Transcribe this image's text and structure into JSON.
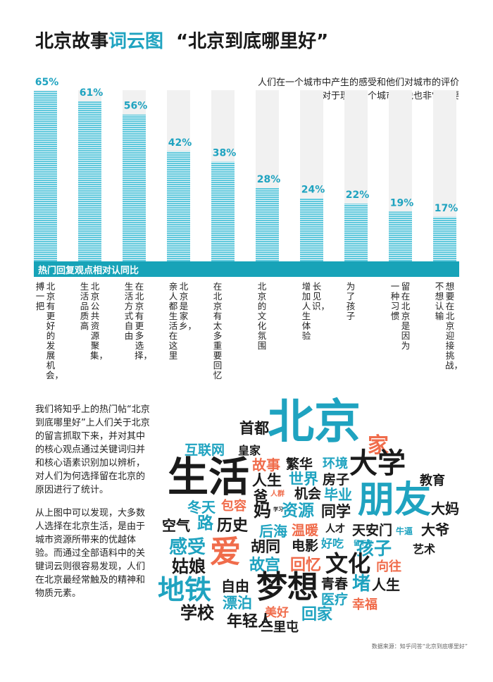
{
  "title": {
    "part1": "北京故事",
    "part2": "词云图",
    "quote": "“北京到底哪里好”"
  },
  "intro": {
    "line1": "人们在一个城市中产生的感受和他们对城市的评价",
    "line2": "对于理解一个城市来说也非常重要"
  },
  "band_label": "热门回复观点相对认同比",
  "colors": {
    "accent": "#1fa3c0",
    "bar": "#5fc8dc",
    "band": "#17a3b8",
    "orange": "#f06c4b",
    "dark": "#1a1a1a"
  },
  "chart_data": {
    "type": "bar",
    "ylim": [
      0,
      70
    ],
    "categories": [
      [
        "北京有更好的发展机会，",
        "搏一把"
      ],
      [
        "北京公共资源聚集，",
        "生活品质高"
      ],
      [
        "在北京有更多选择，",
        "生活方式自由"
      ],
      [
        "北京是家乡，",
        "亲人都生活在这里"
      ],
      [
        "在北京有太多重要回忆"
      ],
      [
        "北京的文化氛围"
      ],
      [
        "长见识，",
        "增加人生体验"
      ],
      [
        "为了孩子"
      ],
      [
        "留在北京是因为",
        "一种习惯"
      ],
      [
        "想要在北京迎接挑战，",
        "不想认输"
      ]
    ],
    "values": [
      65,
      61,
      56,
      42,
      38,
      28,
      24,
      22,
      19,
      17
    ],
    "value_labels": [
      "65%",
      "61%",
      "56%",
      "42%",
      "38%",
      "28%",
      "24%",
      "22%",
      "19%",
      "17%"
    ]
  },
  "body": {
    "p1": "我们将知乎上的热门帖“北京到底哪里好”上人们关于北京的留言抓取下来，并对其中的核心观点通过关键词归并和核心语素识别加以辨析，对人们为何选择留在北京的原因进行了统计。",
    "p2": "从上图中可以发现，大多数人选择在北京生活，是由于城市资源所带来的优越体验。而通过全部语料中的关键词云则很容易发现，人们在北京最经常触及的精神和物质元素。"
  },
  "wordcloud": [
    {
      "text": "北京",
      "color": "accent"
    },
    {
      "text": "首都",
      "color": "dark"
    },
    {
      "text": "家",
      "color": "orange"
    },
    {
      "text": "互联网",
      "color": "accent"
    },
    {
      "text": "皇家",
      "color": "dark"
    },
    {
      "text": "生活",
      "color": "dark"
    },
    {
      "text": "故事",
      "color": "orange"
    },
    {
      "text": "繁华",
      "color": "dark"
    },
    {
      "text": "环境",
      "color": "accent"
    },
    {
      "text": "大学",
      "color": "dark"
    },
    {
      "text": "人生",
      "color": "dark"
    },
    {
      "text": "世界",
      "color": "accent"
    },
    {
      "text": "房子",
      "color": "dark"
    },
    {
      "text": "教育",
      "color": "dark"
    },
    {
      "text": "爸",
      "color": "dark"
    },
    {
      "text": "人群",
      "color": "orange"
    },
    {
      "text": "机会",
      "color": "dark"
    },
    {
      "text": "毕业",
      "color": "accent"
    },
    {
      "text": "朋友",
      "color": "accent"
    },
    {
      "text": "冬天",
      "color": "accent"
    },
    {
      "text": "包容",
      "color": "orange"
    },
    {
      "text": "妈",
      "color": "dark"
    },
    {
      "text": "学习",
      "color": "dark"
    },
    {
      "text": "资源",
      "color": "accent"
    },
    {
      "text": "同学",
      "color": "dark"
    },
    {
      "text": "大妈",
      "color": "dark"
    },
    {
      "text": "空气",
      "color": "dark"
    },
    {
      "text": "路",
      "color": "accent"
    },
    {
      "text": "历史",
      "color": "dark"
    },
    {
      "text": "后海",
      "color": "accent"
    },
    {
      "text": "温暖",
      "color": "orange"
    },
    {
      "text": "人才",
      "color": "dark"
    },
    {
      "text": "天安门",
      "color": "dark"
    },
    {
      "text": "牛逼",
      "color": "accent"
    },
    {
      "text": "大爷",
      "color": "dark"
    },
    {
      "text": "感受",
      "color": "accent"
    },
    {
      "text": "爱",
      "color": "orange"
    },
    {
      "text": "胡同",
      "color": "dark"
    },
    {
      "text": "电影",
      "color": "dark"
    },
    {
      "text": "好吃",
      "color": "accent"
    },
    {
      "text": "留下来",
      "color": "accent"
    },
    {
      "text": "孩子",
      "color": "accent"
    },
    {
      "text": "艺术",
      "color": "dark"
    },
    {
      "text": "姑娘",
      "color": "dark"
    },
    {
      "text": "故宫",
      "color": "accent"
    },
    {
      "text": "回忆",
      "color": "orange"
    },
    {
      "text": "文化",
      "color": "dark"
    },
    {
      "text": "向往",
      "color": "orange"
    },
    {
      "text": "地铁",
      "color": "accent"
    },
    {
      "text": "自由",
      "color": "dark"
    },
    {
      "text": "梦想",
      "color": "dark"
    },
    {
      "text": "青春",
      "color": "dark"
    },
    {
      "text": "堵",
      "color": "accent"
    },
    {
      "text": "人生",
      "color": "dark"
    },
    {
      "text": "漂泊",
      "color": "accent"
    },
    {
      "text": "医疗",
      "color": "accent"
    },
    {
      "text": "幸福",
      "color": "orange"
    },
    {
      "text": "学校",
      "color": "dark"
    },
    {
      "text": "美好",
      "color": "orange"
    },
    {
      "text": "回家",
      "color": "accent"
    },
    {
      "text": "年轻人",
      "color": "dark"
    },
    {
      "text": "三里屯",
      "color": "dark"
    }
  ],
  "source": "数据来源：知乎问答“北京到底哪里好”"
}
